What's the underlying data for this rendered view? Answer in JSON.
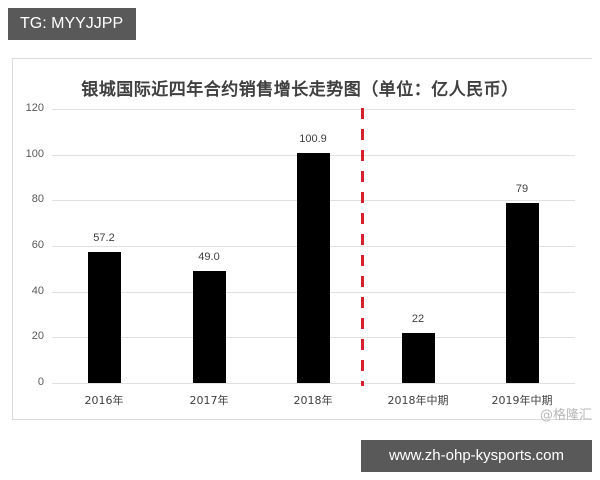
{
  "overlay": {
    "tg_label": "TG: MYYJJPP",
    "url_label": "www.zh-ohp-kysports.com",
    "source_label": "@格隆汇"
  },
  "chart_data": {
    "type": "bar",
    "title": "银城国际近四年合约销售增长走势图（单位：亿人民币）",
    "categories": [
      "2016年",
      "2017年",
      "2018年",
      "2018年中期",
      "2019年中期"
    ],
    "values": [
      57.2,
      49.0,
      100.9,
      22,
      79
    ],
    "value_labels": [
      "57.2",
      "49.0",
      "100.9",
      "22",
      "79"
    ],
    "xlabel": "",
    "ylabel": "",
    "ylim": [
      0,
      120
    ],
    "yticks": [
      0,
      20,
      40,
      60,
      80,
      100,
      120
    ],
    "grid": true,
    "legend": null,
    "bar_color": "#000000",
    "annotations": [
      {
        "type": "vertical-dashed-line",
        "between": [
          "2018年",
          "2018年中期"
        ],
        "color": "#d6202b"
      }
    ]
  }
}
